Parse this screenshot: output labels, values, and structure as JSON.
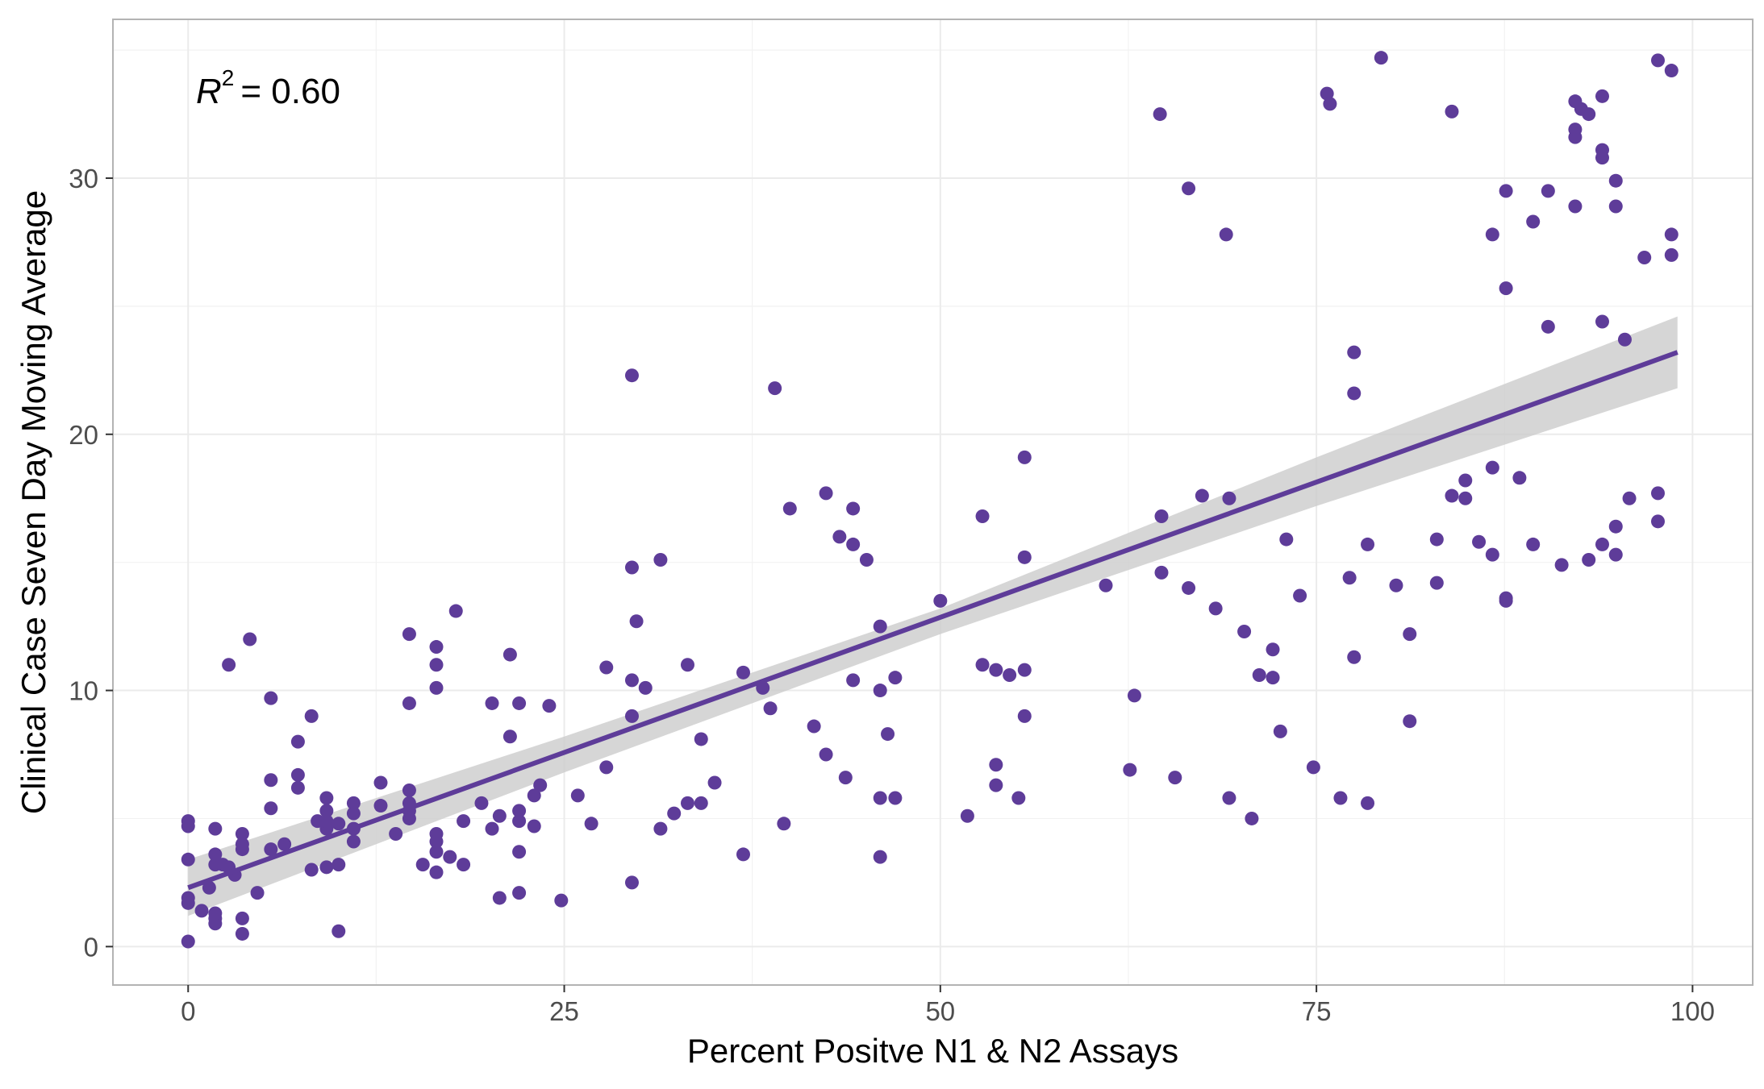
{
  "chart_data": {
    "type": "scatter",
    "xlabel": "Percent Positve N1 & N2 Assays",
    "ylabel": "Clinical Case Seven Day Moving Average",
    "annotation": {
      "lhs": "R",
      "sup": "2",
      "rhs": "= 0.60"
    },
    "xlim": [
      -5,
      104
    ],
    "ylim": [
      -1.5,
      36.2
    ],
    "x_ticks": [
      0,
      25,
      50,
      75,
      100
    ],
    "y_ticks": [
      0,
      10,
      20,
      30
    ],
    "x_tick_labels": [
      "0",
      "25",
      "50",
      "75",
      "100"
    ],
    "y_tick_labels": [
      "0",
      "10",
      "20",
      "30"
    ],
    "grid": true,
    "colors": {
      "points": "#5e3c99",
      "fit_line": "#5e3c99",
      "ribbon": "#cccccc",
      "panel_border": "#b3b3b3",
      "grid": "#ebebeb"
    },
    "fit": {
      "x": [
        0,
        99
      ],
      "y": [
        2.3,
        23.2
      ]
    },
    "ribbon": [
      {
        "x": 0,
        "lo": 1.2,
        "hi": 3.4
      },
      {
        "x": 25,
        "lo": 6.8,
        "hi": 8.2
      },
      {
        "x": 50,
        "lo": 12.2,
        "hi": 13.2
      },
      {
        "x": 75,
        "lo": 17.2,
        "hi": 19.1
      },
      {
        "x": 99,
        "lo": 21.8,
        "hi": 24.6
      }
    ],
    "points": [
      [
        0,
        0.2
      ],
      [
        0,
        1.7
      ],
      [
        0,
        1.9
      ],
      [
        0,
        3.4
      ],
      [
        0,
        4.7
      ],
      [
        0,
        4.9
      ],
      [
        0.9,
        1.4
      ],
      [
        1.4,
        2.3
      ],
      [
        1.8,
        0.9
      ],
      [
        1.8,
        1.1
      ],
      [
        1.8,
        1.3
      ],
      [
        1.8,
        3.2
      ],
      [
        1.8,
        3.6
      ],
      [
        1.8,
        4.6
      ],
      [
        2.3,
        3.2
      ],
      [
        2.7,
        3.1
      ],
      [
        2.7,
        11.0
      ],
      [
        3.1,
        2.8
      ],
      [
        3.6,
        0.5
      ],
      [
        3.6,
        1.1
      ],
      [
        3.6,
        3.8
      ],
      [
        3.6,
        4.0
      ],
      [
        3.6,
        4.4
      ],
      [
        4.1,
        12.0
      ],
      [
        4.6,
        2.1
      ],
      [
        5.5,
        3.8
      ],
      [
        5.5,
        5.4
      ],
      [
        5.5,
        6.5
      ],
      [
        5.5,
        9.7
      ],
      [
        6.4,
        4.0
      ],
      [
        7.3,
        6.2
      ],
      [
        7.3,
        6.7
      ],
      [
        7.3,
        8.0
      ],
      [
        8.2,
        3.0
      ],
      [
        8.2,
        9.0
      ],
      [
        8.6,
        4.9
      ],
      [
        9.2,
        3.1
      ],
      [
        9.2,
        4.6
      ],
      [
        9.2,
        4.9
      ],
      [
        9.2,
        5.3
      ],
      [
        9.2,
        5.8
      ],
      [
        10.0,
        0.6
      ],
      [
        10.0,
        3.2
      ],
      [
        10.0,
        4.8
      ],
      [
        11.0,
        4.1
      ],
      [
        11.0,
        4.6
      ],
      [
        11.0,
        5.2
      ],
      [
        11.0,
        5.6
      ],
      [
        12.8,
        5.5
      ],
      [
        12.8,
        6.4
      ],
      [
        13.8,
        4.4
      ],
      [
        14.7,
        5.0
      ],
      [
        14.7,
        5.3
      ],
      [
        14.7,
        5.6
      ],
      [
        14.7,
        6.1
      ],
      [
        14.7,
        9.5
      ],
      [
        14.7,
        12.2
      ],
      [
        15.6,
        3.2
      ],
      [
        16.5,
        2.9
      ],
      [
        16.5,
        3.7
      ],
      [
        16.5,
        4.1
      ],
      [
        16.5,
        4.4
      ],
      [
        16.5,
        10.1
      ],
      [
        16.5,
        11.0
      ],
      [
        16.5,
        11.7
      ],
      [
        17.4,
        3.5
      ],
      [
        17.8,
        13.1
      ],
      [
        18.3,
        3.2
      ],
      [
        18.3,
        4.9
      ],
      [
        19.5,
        5.6
      ],
      [
        20.2,
        4.6
      ],
      [
        20.2,
        9.5
      ],
      [
        20.7,
        1.9
      ],
      [
        20.7,
        5.1
      ],
      [
        21.4,
        8.2
      ],
      [
        21.4,
        11.4
      ],
      [
        22.0,
        2.1
      ],
      [
        22.0,
        3.7
      ],
      [
        22.0,
        4.9
      ],
      [
        22.0,
        5.3
      ],
      [
        22.0,
        9.5
      ],
      [
        23.0,
        4.7
      ],
      [
        23.0,
        5.9
      ],
      [
        23.4,
        6.3
      ],
      [
        24.0,
        9.4
      ],
      [
        24.8,
        1.8
      ],
      [
        25.9,
        5.9
      ],
      [
        26.8,
        4.8
      ],
      [
        27.8,
        7.0
      ],
      [
        27.8,
        10.9
      ],
      [
        29.5,
        2.5
      ],
      [
        29.5,
        9.0
      ],
      [
        29.5,
        10.4
      ],
      [
        29.5,
        14.8
      ],
      [
        29.5,
        22.3
      ],
      [
        29.8,
        12.7
      ],
      [
        30.4,
        10.1
      ],
      [
        31.4,
        4.6
      ],
      [
        31.4,
        15.1
      ],
      [
        32.3,
        5.2
      ],
      [
        33.2,
        5.6
      ],
      [
        33.2,
        11.0
      ],
      [
        34.1,
        5.6
      ],
      [
        34.1,
        8.1
      ],
      [
        35.0,
        6.4
      ],
      [
        36.9,
        3.6
      ],
      [
        36.9,
        10.7
      ],
      [
        38.2,
        10.1
      ],
      [
        38.7,
        9.3
      ],
      [
        39.0,
        21.8
      ],
      [
        39.6,
        4.8
      ],
      [
        40.0,
        17.1
      ],
      [
        41.6,
        8.6
      ],
      [
        42.4,
        7.5
      ],
      [
        42.4,
        17.7
      ],
      [
        43.3,
        16.0
      ],
      [
        43.7,
        6.6
      ],
      [
        44.2,
        10.4
      ],
      [
        44.2,
        15.7
      ],
      [
        44.2,
        17.1
      ],
      [
        45.1,
        15.1
      ],
      [
        46.0,
        3.5
      ],
      [
        46.0,
        5.8
      ],
      [
        46.0,
        10.0
      ],
      [
        46.0,
        12.5
      ],
      [
        46.5,
        8.3
      ],
      [
        47.0,
        5.8
      ],
      [
        47.0,
        10.5
      ],
      [
        50.0,
        13.5
      ],
      [
        51.8,
        5.1
      ],
      [
        52.8,
        11.0
      ],
      [
        52.8,
        16.8
      ],
      [
        53.7,
        6.3
      ],
      [
        53.7,
        7.1
      ],
      [
        53.7,
        10.8
      ],
      [
        54.6,
        10.6
      ],
      [
        55.2,
        5.8
      ],
      [
        55.6,
        9.0
      ],
      [
        55.6,
        10.8
      ],
      [
        55.6,
        15.2
      ],
      [
        55.6,
        19.1
      ],
      [
        61.0,
        14.1
      ],
      [
        62.6,
        6.9
      ],
      [
        62.9,
        9.8
      ],
      [
        64.6,
        32.5
      ],
      [
        64.7,
        14.6
      ],
      [
        64.7,
        16.8
      ],
      [
        65.6,
        6.6
      ],
      [
        66.5,
        14.0
      ],
      [
        66.5,
        29.6
      ],
      [
        67.4,
        17.6
      ],
      [
        68.3,
        13.2
      ],
      [
        69.2,
        5.8
      ],
      [
        69.2,
        17.5
      ],
      [
        69.0,
        27.8
      ],
      [
        70.2,
        12.3
      ],
      [
        70.7,
        5.0
      ],
      [
        71.2,
        10.6
      ],
      [
        72.1,
        10.5
      ],
      [
        72.1,
        11.6
      ],
      [
        72.6,
        8.4
      ],
      [
        73.0,
        15.9
      ],
      [
        73.9,
        13.7
      ],
      [
        74.8,
        7.0
      ],
      [
        75.7,
        33.3
      ],
      [
        75.9,
        32.9
      ],
      [
        76.6,
        5.8
      ],
      [
        77.2,
        14.4
      ],
      [
        77.5,
        11.3
      ],
      [
        77.5,
        21.6
      ],
      [
        77.5,
        23.2
      ],
      [
        78.4,
        5.6
      ],
      [
        78.4,
        15.7
      ],
      [
        79.3,
        34.7
      ],
      [
        80.3,
        14.1
      ],
      [
        81.2,
        8.8
      ],
      [
        81.2,
        12.2
      ],
      [
        83.0,
        14.2
      ],
      [
        83.0,
        15.9
      ],
      [
        84.0,
        17.6
      ],
      [
        84.0,
        32.6
      ],
      [
        84.9,
        17.5
      ],
      [
        84.9,
        18.2
      ],
      [
        85.8,
        15.8
      ],
      [
        86.7,
        15.3
      ],
      [
        86.7,
        18.7
      ],
      [
        86.7,
        27.8
      ],
      [
        87.6,
        13.5
      ],
      [
        87.6,
        13.6
      ],
      [
        87.6,
        25.7
      ],
      [
        87.6,
        29.5
      ],
      [
        88.5,
        18.3
      ],
      [
        89.4,
        15.7
      ],
      [
        89.4,
        28.3
      ],
      [
        90.4,
        24.2
      ],
      [
        90.4,
        29.5
      ],
      [
        91.3,
        14.9
      ],
      [
        92.2,
        28.9
      ],
      [
        92.2,
        31.6
      ],
      [
        92.2,
        31.9
      ],
      [
        92.2,
        33.0
      ],
      [
        92.6,
        32.7
      ],
      [
        93.1,
        15.1
      ],
      [
        93.1,
        32.5
      ],
      [
        94.0,
        15.7
      ],
      [
        94.0,
        24.4
      ],
      [
        94.0,
        30.8
      ],
      [
        94.0,
        31.1
      ],
      [
        94.0,
        33.2
      ],
      [
        94.9,
        15.3
      ],
      [
        94.9,
        16.4
      ],
      [
        94.9,
        28.9
      ],
      [
        94.9,
        29.9
      ],
      [
        95.5,
        23.7
      ],
      [
        95.8,
        17.5
      ],
      [
        96.8,
        26.9
      ],
      [
        97.7,
        16.6
      ],
      [
        97.7,
        17.7
      ],
      [
        97.7,
        34.6
      ],
      [
        98.6,
        34.2
      ],
      [
        98.6,
        27.8
      ],
      [
        98.6,
        27.0
      ]
    ]
  }
}
